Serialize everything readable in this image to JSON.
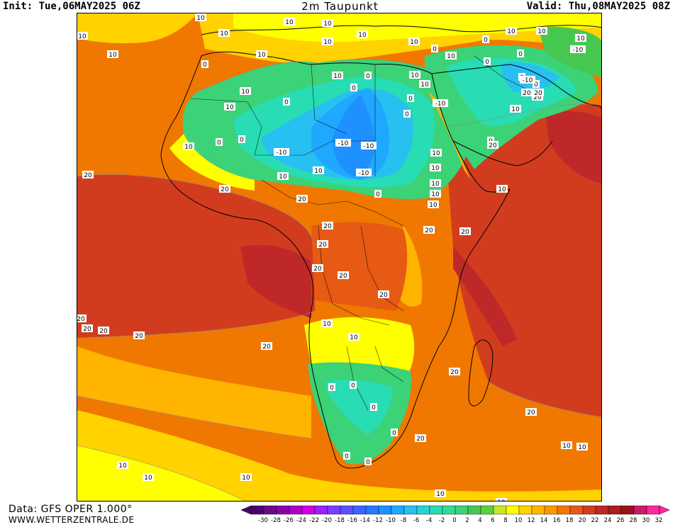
{
  "header": {
    "init_label": "Init: Tue,06MAY2025 06Z",
    "title": "2m Taupunkt",
    "valid_label": "Valid: Thu,08MAY2025 08Z"
  },
  "footer": {
    "data_source": "Data: GFS OPER 1.000°",
    "website": "WWW.WETTERZENTRALE.DE"
  },
  "legend": {
    "ticks": [
      "-30",
      "-28",
      "-26",
      "-24",
      "-22",
      "-20",
      "-18",
      "-16",
      "-14",
      "-12",
      "-10",
      "-8",
      "-6",
      "-4",
      "-2",
      "0",
      "2",
      "4",
      "6",
      "8",
      "10",
      "12",
      "14",
      "16",
      "18",
      "20",
      "22",
      "24",
      "26",
      "28",
      "30",
      "32"
    ],
    "colors": [
      "#4b006e",
      "#6a0a8a",
      "#8c00a8",
      "#b000c8",
      "#d000e0",
      "#9a20ff",
      "#7a3cff",
      "#5a50ff",
      "#3c64ff",
      "#2878ff",
      "#1e90ff",
      "#1ea8ff",
      "#28c0f0",
      "#28d2d2",
      "#28dcb4",
      "#32dc96",
      "#3cd278",
      "#46c850",
      "#5ad23c",
      "#c8e628",
      "#ffff00",
      "#ffd200",
      "#ffb400",
      "#ff9600",
      "#f07800",
      "#e65a14",
      "#d23c1e",
      "#be2828",
      "#aa1e1e",
      "#96141e",
      "#c81e64",
      "#ff28a0"
    ]
  },
  "contour_labels": [
    {
      "text": "10"
    },
    {
      "text": "10"
    },
    {
      "text": "10"
    },
    {
      "text": "10"
    },
    {
      "text": "10"
    },
    {
      "text": "10"
    },
    {
      "text": "10"
    },
    {
      "text": "10"
    },
    {
      "text": "10"
    },
    {
      "text": "10"
    },
    {
      "text": "10"
    },
    {
      "text": "10"
    },
    {
      "text": "10"
    },
    {
      "text": "10"
    },
    {
      "text": "10"
    },
    {
      "text": "10"
    },
    {
      "text": "10"
    },
    {
      "text": "10"
    },
    {
      "text": "10"
    },
    {
      "text": "10"
    },
    {
      "text": "10"
    },
    {
      "text": "10"
    },
    {
      "text": "10"
    },
    {
      "text": "10"
    },
    {
      "text": "10"
    },
    {
      "text": "10"
    },
    {
      "text": "10"
    },
    {
      "text": "10"
    },
    {
      "text": "10"
    },
    {
      "text": "10"
    },
    {
      "text": "10"
    },
    {
      "text": "10"
    },
    {
      "text": "10"
    },
    {
      "text": "10"
    },
    {
      "text": "10"
    },
    {
      "text": "10"
    },
    {
      "text": "10"
    },
    {
      "text": "10"
    },
    {
      "text": "0"
    },
    {
      "text": "0"
    },
    {
      "text": "0"
    },
    {
      "text": "0"
    },
    {
      "text": "0"
    },
    {
      "text": "0"
    },
    {
      "text": "0"
    },
    {
      "text": "0"
    },
    {
      "text": "0"
    },
    {
      "text": "0"
    },
    {
      "text": "0"
    },
    {
      "text": "0"
    },
    {
      "text": "0"
    },
    {
      "text": "0"
    },
    {
      "text": "0"
    },
    {
      "text": "0"
    },
    {
      "text": "0"
    },
    {
      "text": "0"
    },
    {
      "text": "0"
    },
    {
      "text": "0"
    },
    {
      "text": "0"
    },
    {
      "text": "0"
    },
    {
      "text": "-10"
    },
    {
      "text": "-10"
    },
    {
      "text": "-10"
    },
    {
      "text": "-10"
    },
    {
      "text": "-10"
    },
    {
      "text": "-10"
    },
    {
      "text": "-10"
    },
    {
      "text": "20"
    },
    {
      "text": "20"
    },
    {
      "text": "20"
    },
    {
      "text": "20"
    },
    {
      "text": "20"
    },
    {
      "text": "20"
    },
    {
      "text": "20"
    },
    {
      "text": "20"
    },
    {
      "text": "20"
    },
    {
      "text": "20"
    },
    {
      "text": "20"
    },
    {
      "text": "20"
    },
    {
      "text": "20"
    },
    {
      "text": "20"
    },
    {
      "text": "20"
    },
    {
      "text": "20"
    },
    {
      "text": "20"
    },
    {
      "text": "20"
    },
    {
      "text": "20"
    },
    {
      "text": "20"
    },
    {
      "text": "20"
    },
    {
      "text": "20"
    },
    {
      "text": "20"
    }
  ]
}
